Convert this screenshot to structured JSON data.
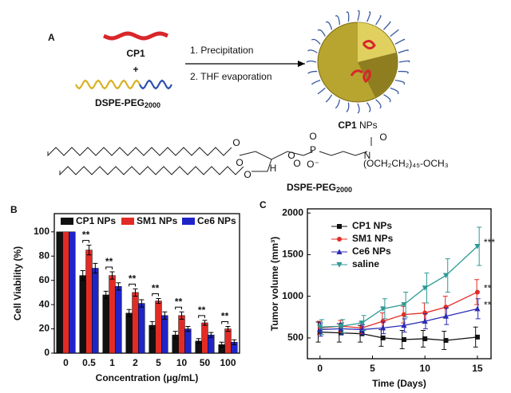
{
  "panel_a": {
    "label": "A",
    "reactant1": "CP1",
    "plus": "+",
    "reactant2": {
      "main": "DSPE-PEG",
      "sub": "2000"
    },
    "steps": [
      "1. Precipitation",
      "2. THF evaporation"
    ],
    "product": {
      "bold": "CP1",
      "rest": " NPs"
    },
    "structure": {
      "atoms": [
        "O",
        "O",
        "O",
        "P",
        "O",
        "O⁻",
        "O",
        "H",
        "N",
        "O",
        "O"
      ],
      "tail": "(OCH₂CH₂)₄₅-OCH₃",
      "name": {
        "main": "DSPE-PEG",
        "sub": "2000"
      }
    }
  },
  "chart_data": [
    {
      "type": "bar",
      "panel": "B",
      "ylabel": "Cell Viability (%)",
      "xlabel": "Concentration (μg/mL)",
      "categories": [
        "0",
        "0.5",
        "1",
        "2",
        "5",
        "10",
        "50",
        "100"
      ],
      "ylim": [
        0,
        115
      ],
      "yticks": [
        0,
        20,
        40,
        60,
        80,
        100
      ],
      "legend": "top",
      "series": [
        {
          "name": "CP1 NPs",
          "color": "#111111",
          "values": [
            100,
            64,
            48,
            33,
            23,
            15,
            10,
            7
          ],
          "errors": [
            0,
            4,
            3,
            3,
            3,
            3,
            2,
            2
          ]
        },
        {
          "name": "SM1 NPs",
          "color": "#e32b25",
          "values": [
            100,
            85,
            64,
            50,
            43,
            31,
            25,
            20
          ],
          "errors": [
            0,
            4,
            3,
            3,
            2,
            3,
            2,
            2
          ]
        },
        {
          "name": "Ce6 NPs",
          "color": "#1f24c9",
          "values": [
            100,
            70,
            55,
            41,
            31,
            20,
            15,
            9
          ],
          "errors": [
            0,
            4,
            3,
            3,
            3,
            2,
            2,
            2
          ]
        }
      ],
      "significance": [
        null,
        "**",
        "**",
        "**",
        "**",
        "**",
        "**",
        "**"
      ]
    },
    {
      "type": "line",
      "panel": "C",
      "ylabel": "Tumor volume (mm³)",
      "xlabel": "Time (Days)",
      "x": [
        0,
        2,
        4,
        6,
        8,
        10,
        12,
        15
      ],
      "xlim": [
        -1.2,
        16.3
      ],
      "xticks": [
        0,
        5,
        10,
        15
      ],
      "ylim": [
        250,
        2050
      ],
      "yticks": [
        500,
        1000,
        1500,
        2000
      ],
      "legend": "upper left",
      "series": [
        {
          "name": "CP1 NPs",
          "color": "#111111",
          "marker": "square",
          "values": [
            570,
            560,
            550,
            500,
            480,
            490,
            470,
            510
          ],
          "errors": [
            120,
            110,
            100,
            100,
            110,
            100,
            110,
            120
          ]
        },
        {
          "name": "SM1 NPs",
          "color": "#e32b25",
          "marker": "circle",
          "values": [
            620,
            640,
            620,
            700,
            780,
            800,
            870,
            1050
          ],
          "errors": [
            80,
            70,
            70,
            100,
            100,
            120,
            130,
            150
          ],
          "mark": "**"
        },
        {
          "name": "Ce6 NPs",
          "color": "#2b2bb5",
          "marker": "triangle",
          "values": [
            600,
            610,
            600,
            620,
            650,
            700,
            760,
            850
          ],
          "errors": [
            80,
            70,
            60,
            70,
            80,
            90,
            100,
            120
          ],
          "mark": "**"
        },
        {
          "name": "saline",
          "color": "#2e9a96",
          "marker": "down-triangle",
          "values": [
            630,
            640,
            680,
            850,
            900,
            1100,
            1250,
            1600
          ],
          "errors": [
            90,
            80,
            90,
            120,
            150,
            180,
            200,
            230
          ],
          "mark": "***"
        }
      ]
    }
  ]
}
